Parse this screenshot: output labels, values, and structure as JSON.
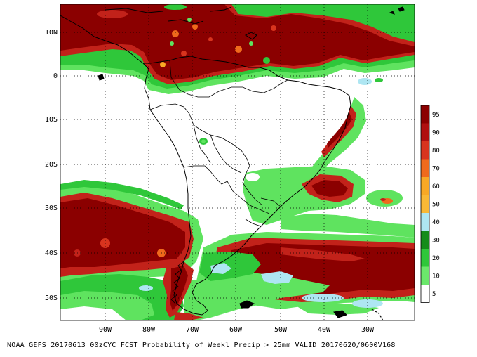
{
  "caption": "NOAA GEFS 20170613 00zCYC FCST Probability of Weekl Precip > 25mm  VALID 20170620/0600V168",
  "map": {
    "region": "South America and surrounding oceans",
    "projection": "lat-lon",
    "lat_labels": [
      "10N",
      "0",
      "10S",
      "20S",
      "30S",
      "40S",
      "50S"
    ],
    "lon_labels": [
      "90W",
      "80W",
      "70W",
      "60W",
      "50W",
      "40W",
      "30W"
    ],
    "gridlines": "dotted"
  },
  "legend": {
    "labels": [
      "95",
      "90",
      "80",
      "70",
      "60",
      "50",
      "40",
      "30",
      "20",
      "10",
      "5"
    ],
    "colors": [
      "#8b0000",
      "#b01010",
      "#d8341e",
      "#ef6a1c",
      "#f8a825",
      "#f9b835",
      "#aee6f2",
      "#148c1a",
      "#2fc73a",
      "#6be86b",
      "#ffffff"
    ],
    "units": "percent"
  },
  "colors": {
    "heavy": "#8b0000",
    "high": "#c2221a",
    "medium": "#ef6a1c",
    "light_green": "#5fe35f",
    "green": "#2fc73a",
    "dark_green": "#148c1a",
    "cyan": "#aee6f2",
    "coast": "#000000"
  }
}
